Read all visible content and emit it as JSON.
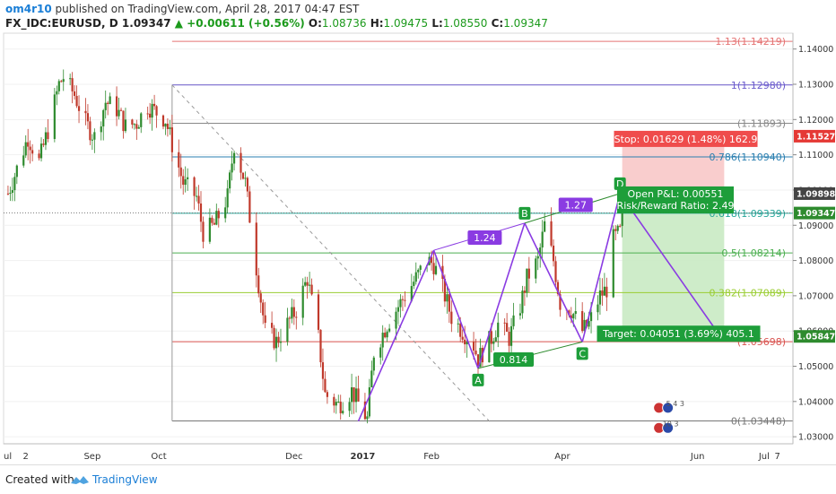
{
  "header": {
    "author": "om4r10",
    "published": "published on TradingView.com, April 28, 2017 04:47 EST",
    "symbol": "FX_IDC:EURUSD, D",
    "last": "1.09347",
    "change": "▲ +0.00611 (+0.56%)",
    "o_label": "O:",
    "o": "1.08736",
    "h_label": "H:",
    "h": "1.09475",
    "l_label": "L:",
    "l": "1.08550",
    "c_label": "C:",
    "c": "1.09347"
  },
  "footer": {
    "created": "Created with",
    "brand": "TradingView"
  },
  "colors": {
    "up": "#2e8b2e",
    "down": "#c0392b",
    "pattern": "#8a3be2",
    "stop_zone": "#f8c8c8",
    "target_zone": "#c9eac3"
  },
  "chart_data": {
    "type": "candlestick",
    "symbol": "FX_IDC:EURUSD, D",
    "yaxis": {
      "ticks": [
        1.03,
        1.04,
        1.05,
        1.06,
        1.07,
        1.08,
        1.09,
        1.1,
        1.11,
        1.12,
        1.13,
        1.14
      ],
      "tick_labels": [
        "1.03000",
        "1.04000",
        "1.05000",
        "1.06000",
        "1.07000",
        "1.08000",
        "1.09000",
        "1.10000",
        "1.11000",
        "1.12000",
        "1.13000",
        "1.14000"
      ],
      "range": [
        1.028,
        1.1445
      ]
    },
    "xaxis": {
      "labels": [
        "ul",
        "2",
        "Sep",
        "Oct",
        "Dec",
        "2017",
        "Feb",
        "Apr",
        "Jun",
        "Jul",
        "7"
      ],
      "range": [
        "2016-07-23",
        "2017-07-14"
      ]
    },
    "price_labels": [
      {
        "text": "1.11527",
        "value": 1.11527,
        "color": "#e53935"
      },
      {
        "text": "1.09898",
        "value": 1.09898,
        "color": "#444444"
      },
      {
        "text": "1.09347",
        "value": 1.09347,
        "color": "#2e8b2e"
      },
      {
        "text": "1.05847",
        "value": 1.05847,
        "color": "#2e8b2e"
      }
    ],
    "fib_levels": [
      {
        "label": "1.13(1.14219)",
        "value": 1.14219,
        "color": "#e57373"
      },
      {
        "label": "1(1.12980)",
        "value": 1.1298,
        "color": "#6a5acd"
      },
      {
        "label": "(1.11893)",
        "value": 1.11893,
        "color": "#888888"
      },
      {
        "label": "0.786(1.10940)",
        "value": 1.1094,
        "color": "#2a7fb0"
      },
      {
        "label": "0.618(1.09339)",
        "value": 1.09339,
        "color": "#26a69a"
      },
      {
        "label": "0.5(1.08214)",
        "value": 1.08214,
        "color": "#4caf50"
      },
      {
        "label": "0.382(1.07089)",
        "value": 1.07089,
        "color": "#9acd32"
      },
      {
        "label": "(1.05698)",
        "value": 1.05698,
        "color": "#d9534f"
      },
      {
        "label": "0(1.03448)",
        "value": 1.03448,
        "color": "#777777"
      }
    ],
    "fib_start_date": "2016-10-07",
    "pattern": {
      "points": [
        {
          "label": "",
          "date": "2016-12-30",
          "price": 1.0344
        },
        {
          "label": "",
          "date": "2017-02-02",
          "price": 1.0829
        },
        {
          "label": "A",
          "date": "2017-02-22",
          "price": 1.0494
        },
        {
          "label": "B",
          "date": "2017-03-15",
          "price": 1.0906
        },
        {
          "label": "C",
          "date": "2017-04-10",
          "price": 1.0569
        },
        {
          "label": "D",
          "date": "2017-04-27",
          "price": 1.099
        }
      ],
      "ratios": [
        {
          "text": "1.24",
          "date": "2017-02-25",
          "price": 1.0865
        },
        {
          "text": "0.814",
          "date": "2017-03-10",
          "price": 1.0519
        },
        {
          "text": "1.27",
          "date": "2017-04-07",
          "price": 1.0958
        }
      ],
      "projection_end": {
        "date": "2017-06-09",
        "price": 1.0605
      }
    },
    "position": {
      "start_date": "2017-04-28",
      "end_date": "2017-06-13",
      "entry": 1.09898,
      "stop": 1.11527,
      "target": 1.05847,
      "stop_label": "Stop: 0.01629 (1.48%) 162.9",
      "target_label": "Target: 0.04051 (3.69%) 405.1",
      "pnl_label": "Open P&L: 0.00551",
      "rr_label": "Risk/Reward Ratio: 2.49"
    },
    "vertical_line": {
      "date": "2016-10-07",
      "from": 1.03448,
      "to": 1.1298
    },
    "dashed_trend": {
      "from": {
        "date": "2016-10-07",
        "price": 1.1298
      },
      "to": {
        "date": "2017-02-28",
        "price": 1.0338
      }
    },
    "ohlc_path": [
      [
        "2016-07-25",
        1.099
      ],
      [
        "2016-07-29",
        1.106
      ],
      [
        "2016-08-03",
        1.115
      ],
      [
        "2016-08-08",
        1.108
      ],
      [
        "2016-08-12",
        1.117
      ],
      [
        "2016-08-17",
        1.13
      ],
      [
        "2016-08-19",
        1.132
      ],
      [
        "2016-08-24",
        1.127
      ],
      [
        "2016-08-29",
        1.119
      ],
      [
        "2016-09-02",
        1.115
      ],
      [
        "2016-09-07",
        1.125
      ],
      [
        "2016-09-12",
        1.123
      ],
      [
        "2016-09-16",
        1.118
      ],
      [
        "2016-09-21",
        1.119
      ],
      [
        "2016-09-26",
        1.124
      ],
      [
        "2016-09-30",
        1.122
      ],
      [
        "2016-10-04",
        1.12
      ],
      [
        "2016-10-07",
        1.113
      ],
      [
        "2016-10-12",
        1.102
      ],
      [
        "2016-10-18",
        1.098
      ],
      [
        "2016-10-21",
        1.088
      ],
      [
        "2016-10-26",
        1.09
      ],
      [
        "2016-11-01",
        1.098
      ],
      [
        "2016-11-04",
        1.113
      ],
      [
        "2016-11-09",
        1.102
      ],
      [
        "2016-11-14",
        1.078
      ],
      [
        "2016-11-18",
        1.06
      ],
      [
        "2016-11-23",
        1.057
      ],
      [
        "2016-11-28",
        1.062
      ],
      [
        "2016-12-02",
        1.066
      ],
      [
        "2016-12-07",
        1.075
      ],
      [
        "2016-12-12",
        1.058
      ],
      [
        "2016-12-15",
        1.042
      ],
      [
        "2016-12-21",
        1.039
      ],
      [
        "2016-12-27",
        1.043
      ],
      [
        "2017-01-03",
        1.035
      ],
      [
        "2017-01-06",
        1.054
      ],
      [
        "2017-01-12",
        1.062
      ],
      [
        "2017-01-18",
        1.068
      ],
      [
        "2017-01-24",
        1.074
      ],
      [
        "2017-01-30",
        1.08
      ],
      [
        "2017-02-02",
        1.079
      ],
      [
        "2017-02-06",
        1.072
      ],
      [
        "2017-02-10",
        1.064
      ],
      [
        "2017-02-15",
        1.06
      ],
      [
        "2017-02-20",
        1.056
      ],
      [
        "2017-02-22",
        1.052
      ],
      [
        "2017-02-28",
        1.058
      ],
      [
        "2017-03-03",
        1.062
      ],
      [
        "2017-03-08",
        1.058
      ],
      [
        "2017-03-13",
        1.067
      ],
      [
        "2017-03-16",
        1.075
      ],
      [
        "2017-03-21",
        1.08
      ],
      [
        "2017-03-24",
        1.09
      ],
      [
        "2017-03-28",
        1.08
      ],
      [
        "2017-03-31",
        1.068
      ],
      [
        "2017-04-05",
        1.066
      ],
      [
        "2017-04-10",
        1.06
      ],
      [
        "2017-04-13",
        1.062
      ],
      [
        "2017-04-18",
        1.07
      ],
      [
        "2017-04-21",
        1.072
      ],
      [
        "2017-04-24",
        1.086
      ],
      [
        "2017-04-27",
        1.088
      ],
      [
        "2017-04-28",
        1.093
      ]
    ]
  }
}
